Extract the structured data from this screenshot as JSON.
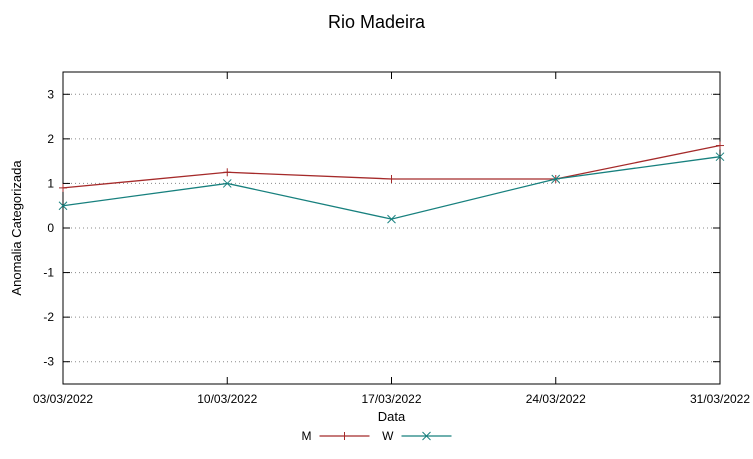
{
  "chart_data": {
    "type": "line",
    "title": "Rio Madeira",
    "xlabel": "Data",
    "ylabel": "Anomalia Categorizada",
    "categories": [
      "03/03/2022",
      "10/03/2022",
      "17/03/2022",
      "24/03/2022",
      "31/03/2022"
    ],
    "series": [
      {
        "name": "M",
        "marker": "plus",
        "color": "#a52a2a",
        "values": [
          0.9,
          1.25,
          1.1,
          1.1,
          1.85
        ]
      },
      {
        "name": "W",
        "marker": "cross",
        "color": "#17807e",
        "values": [
          0.5,
          1.0,
          0.2,
          1.1,
          1.6
        ]
      }
    ],
    "ylim": [
      -3.5,
      3.5
    ],
    "yticks": [
      -3,
      -2,
      -1,
      0,
      1,
      2,
      3
    ],
    "grid": "horizontal-dotted",
    "legend_position": "bottom-center"
  }
}
